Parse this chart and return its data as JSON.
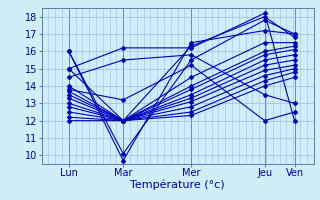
{
  "background_color": "#cceeff",
  "plot_bg_color": "#cceeff",
  "outer_bg": "#d0eef8",
  "line_color": "#0000bb",
  "grid_color": "#aabbcc",
  "xlabel": "Température (°c)",
  "ylim": [
    9.5,
    18.5
  ],
  "yticks": [
    10,
    11,
    12,
    13,
    14,
    15,
    16,
    17,
    18
  ],
  "xlim": [
    0,
    10
  ],
  "day_positions": [
    1.0,
    3.0,
    5.5,
    8.2,
    9.3
  ],
  "day_labels": [
    "Lun",
    "Mar",
    "Mer",
    "Jeu",
    "Ven"
  ],
  "series": [
    [
      16.0,
      9.7,
      16.5,
      17.2,
      17.0
    ],
    [
      16.0,
      10.1,
      15.5,
      17.8,
      17.0
    ],
    [
      15.0,
      12.0,
      16.3,
      18.0,
      16.8
    ],
    [
      14.0,
      12.0,
      14.5,
      16.5,
      16.5
    ],
    [
      13.7,
      12.0,
      14.0,
      16.0,
      16.3
    ],
    [
      13.5,
      12.0,
      13.8,
      15.8,
      16.1
    ],
    [
      13.3,
      12.0,
      13.5,
      15.5,
      15.8
    ],
    [
      13.0,
      12.0,
      13.3,
      15.2,
      15.5
    ],
    [
      12.8,
      12.0,
      13.1,
      14.9,
      15.2
    ],
    [
      12.5,
      12.0,
      12.8,
      14.6,
      15.0
    ],
    [
      12.2,
      12.0,
      12.5,
      14.3,
      14.8
    ],
    [
      12.0,
      12.0,
      12.3,
      14.0,
      14.5
    ],
    [
      13.8,
      13.2,
      15.2,
      12.0,
      12.5
    ],
    [
      14.5,
      15.5,
      15.8,
      13.5,
      13.0
    ],
    [
      15.0,
      16.2,
      16.2,
      18.2,
      12.0
    ]
  ],
  "marker": "D",
  "markersize": 2.0,
  "linewidth": 0.8
}
